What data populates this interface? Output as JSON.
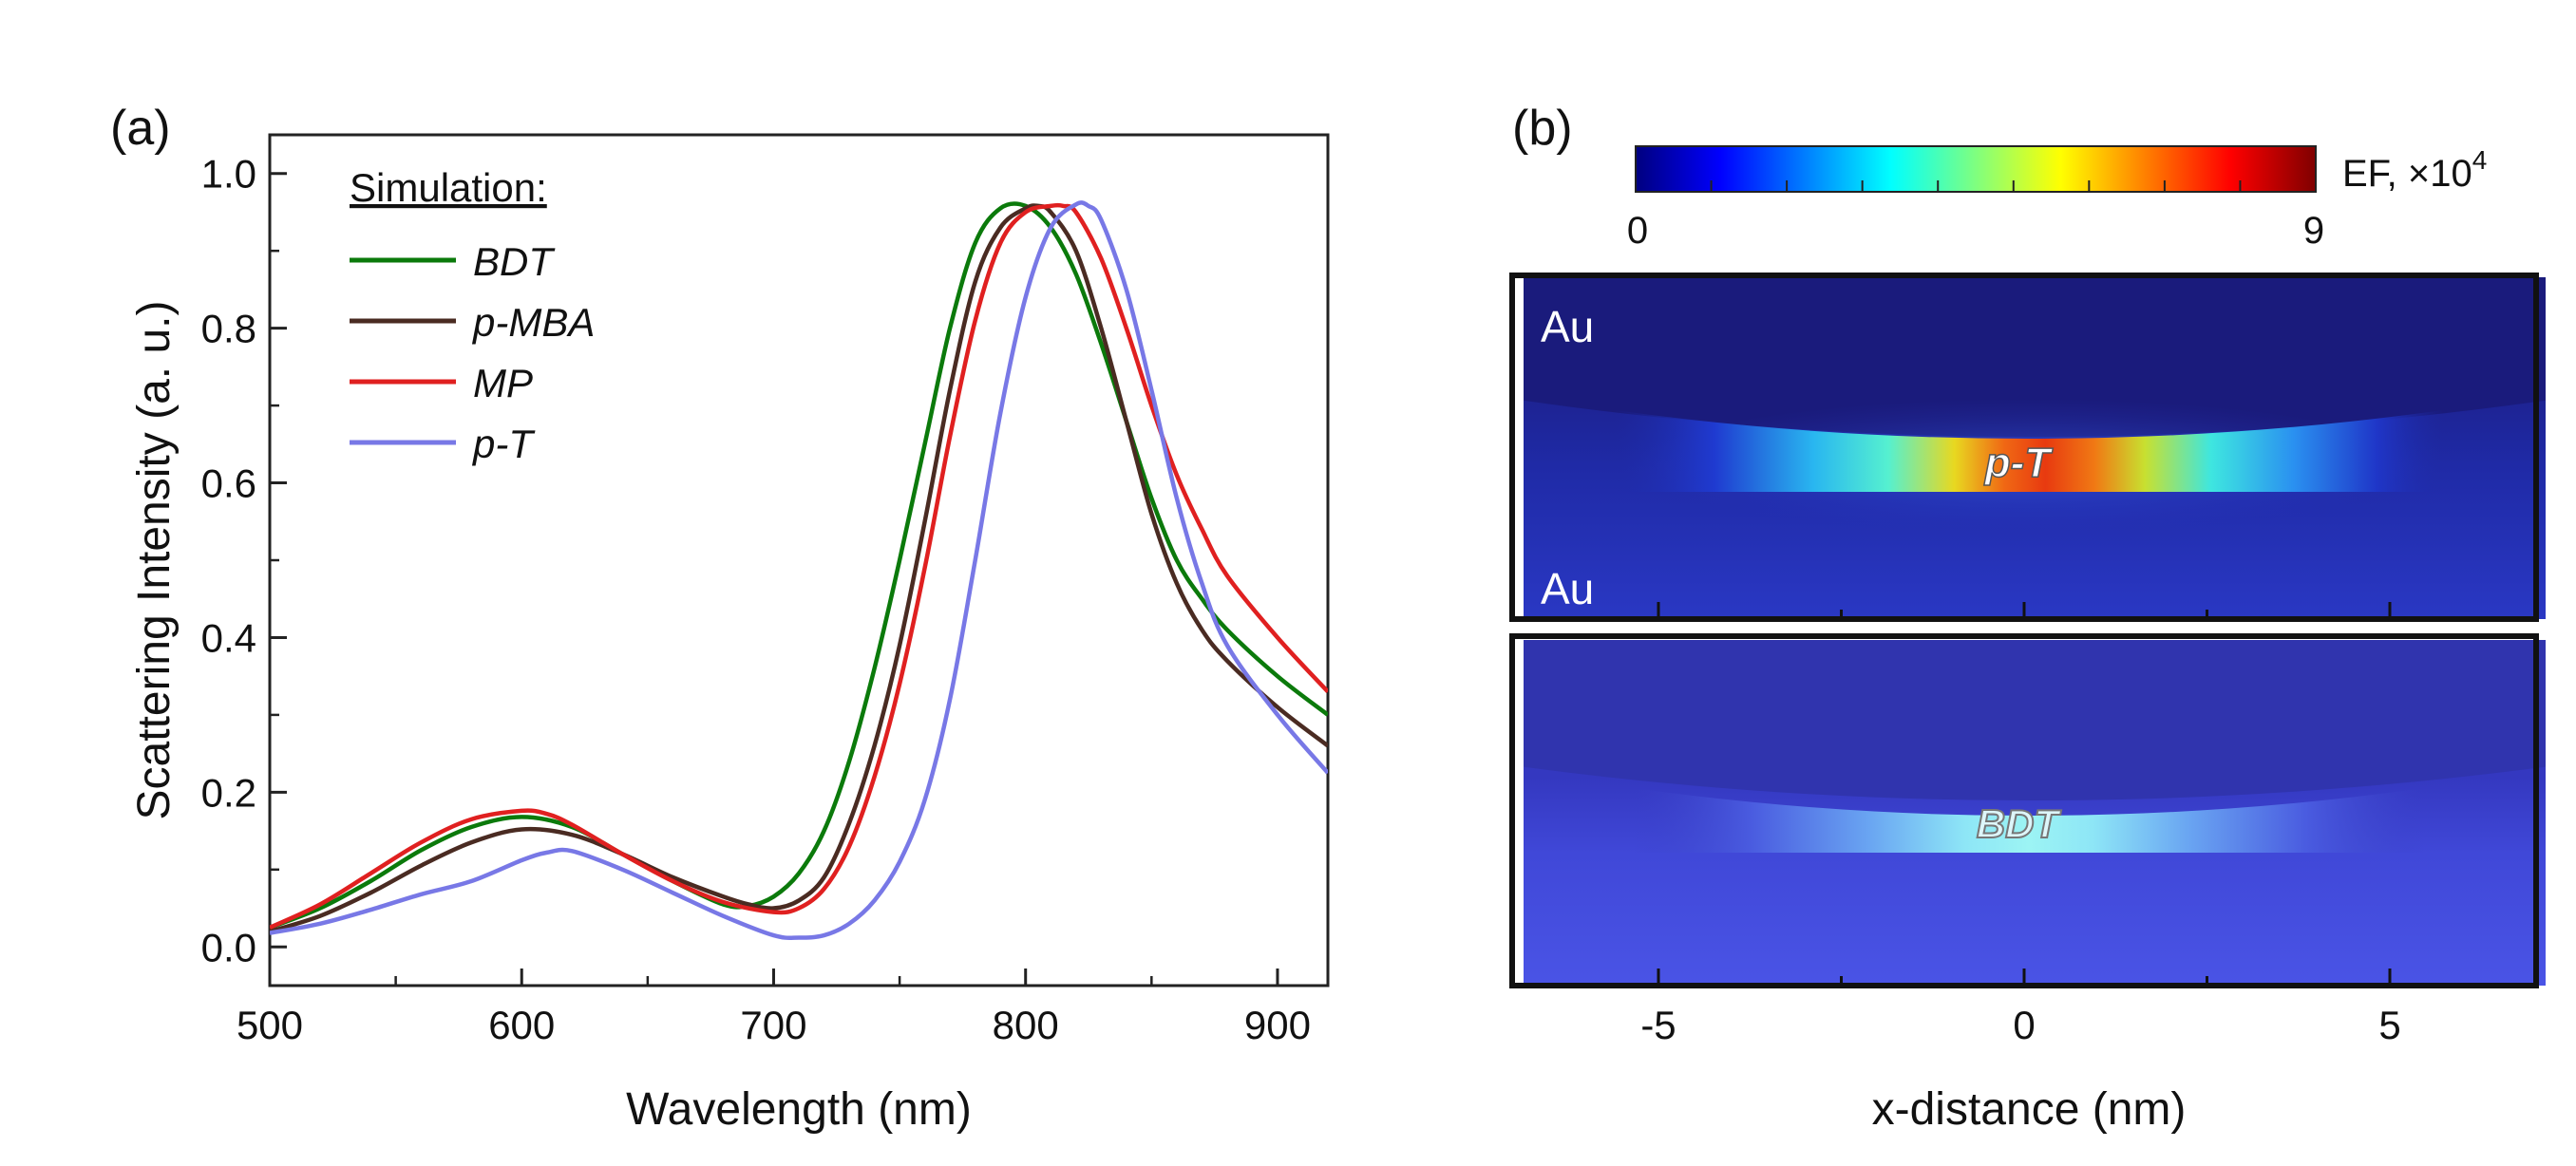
{
  "panel_a": {
    "label": "(a)",
    "legend_title": "Simulation:"
  },
  "panel_b": {
    "label": "(b)",
    "colorbar": {
      "min_label": "0",
      "max_label": "9",
      "title": "EF, ×10",
      "title_exponent": "4",
      "colormap": [
        "#00007f",
        "#0000ff",
        "#007fff",
        "#00ffff",
        "#7fff7f",
        "#ffff00",
        "#ff7f00",
        "#ff0000",
        "#7f0000"
      ]
    },
    "top_map": {
      "label_top": "Au",
      "label_bottom": "Au",
      "molecule": "p-T"
    },
    "bottom_map": {
      "molecule": "BDT"
    }
  },
  "chart_data": [
    {
      "type": "line",
      "panel": "a",
      "title": "",
      "xlabel": "Wavelength (nm)",
      "ylabel": "Scattering Intensity (a. u.)",
      "xlim": [
        500,
        920
      ],
      "ylim": [
        -0.05,
        1.05
      ],
      "xticks": [
        500,
        600,
        700,
        800,
        900
      ],
      "yticks": [
        0.0,
        0.2,
        0.4,
        0.6,
        0.8,
        1.0
      ],
      "xtick_labels": [
        "500",
        "600",
        "700",
        "800",
        "900"
      ],
      "ytick_labels": [
        "0.0",
        "0.2",
        "0.4",
        "0.6",
        "0.8",
        "1.0"
      ],
      "legend_position": "top-left",
      "grid": false,
      "series": [
        {
          "name": "BDT",
          "color": "#0b7a0b",
          "x": [
            500,
            520,
            540,
            560,
            580,
            600,
            620,
            640,
            660,
            680,
            690,
            700,
            710,
            720,
            730,
            740,
            750,
            760,
            770,
            780,
            790,
            800,
            810,
            820,
            830,
            840,
            850,
            860,
            870,
            880,
            900,
            920
          ],
          "y": [
            0.025,
            0.05,
            0.085,
            0.125,
            0.155,
            0.168,
            0.155,
            0.12,
            0.085,
            0.055,
            0.053,
            0.065,
            0.095,
            0.15,
            0.24,
            0.36,
            0.5,
            0.65,
            0.8,
            0.91,
            0.955,
            0.958,
            0.93,
            0.87,
            0.78,
            0.68,
            0.58,
            0.5,
            0.45,
            0.41,
            0.35,
            0.3
          ]
        },
        {
          "name": "p-MBA",
          "color": "#4a2b22",
          "x": [
            500,
            520,
            540,
            560,
            580,
            600,
            620,
            640,
            660,
            680,
            690,
            700,
            710,
            720,
            730,
            740,
            750,
            760,
            770,
            780,
            790,
            800,
            805,
            810,
            820,
            830,
            840,
            850,
            860,
            870,
            880,
            900,
            920
          ],
          "y": [
            0.02,
            0.04,
            0.07,
            0.105,
            0.135,
            0.152,
            0.145,
            0.12,
            0.09,
            0.065,
            0.055,
            0.05,
            0.06,
            0.09,
            0.16,
            0.26,
            0.39,
            0.55,
            0.72,
            0.86,
            0.93,
            0.955,
            0.958,
            0.95,
            0.9,
            0.8,
            0.68,
            0.56,
            0.47,
            0.41,
            0.37,
            0.31,
            0.26
          ]
        },
        {
          "name": "MP",
          "color": "#e02020",
          "x": [
            500,
            520,
            540,
            560,
            580,
            600,
            610,
            620,
            640,
            660,
            680,
            700,
            710,
            720,
            730,
            740,
            750,
            760,
            770,
            780,
            790,
            800,
            810,
            815,
            820,
            830,
            840,
            850,
            860,
            870,
            880,
            900,
            920
          ],
          "y": [
            0.025,
            0.055,
            0.095,
            0.135,
            0.165,
            0.176,
            0.172,
            0.158,
            0.12,
            0.085,
            0.058,
            0.045,
            0.05,
            0.075,
            0.13,
            0.22,
            0.34,
            0.49,
            0.66,
            0.81,
            0.91,
            0.95,
            0.958,
            0.958,
            0.95,
            0.89,
            0.8,
            0.7,
            0.61,
            0.54,
            0.48,
            0.4,
            0.33
          ]
        },
        {
          "name": "p-T",
          "color": "#7878e6",
          "x": [
            500,
            520,
            540,
            560,
            580,
            600,
            610,
            620,
            640,
            660,
            680,
            700,
            710,
            720,
            730,
            740,
            750,
            760,
            770,
            780,
            790,
            800,
            810,
            820,
            825,
            830,
            840,
            850,
            860,
            870,
            880,
            900,
            920
          ],
          "y": [
            0.018,
            0.03,
            0.048,
            0.068,
            0.085,
            0.112,
            0.122,
            0.124,
            0.1,
            0.07,
            0.04,
            0.015,
            0.012,
            0.015,
            0.03,
            0.06,
            0.11,
            0.19,
            0.32,
            0.5,
            0.69,
            0.84,
            0.93,
            0.96,
            0.958,
            0.94,
            0.85,
            0.72,
            0.58,
            0.47,
            0.39,
            0.3,
            0.225
          ]
        }
      ]
    },
    {
      "type": "heatmap",
      "panel": "b",
      "title": "",
      "xlabel": "x-distance (nm)",
      "ylabel": "",
      "xlim": [
        -7,
        7
      ],
      "xticks": [
        -5,
        0,
        5
      ],
      "xtick_labels": [
        "-5",
        "0",
        "5"
      ],
      "zlim": [
        0,
        9
      ],
      "maps": [
        {
          "name": "p-T",
          "peak_ef": 8.2
        },
        {
          "name": "BDT",
          "peak_ef": 4.1
        }
      ]
    }
  ]
}
